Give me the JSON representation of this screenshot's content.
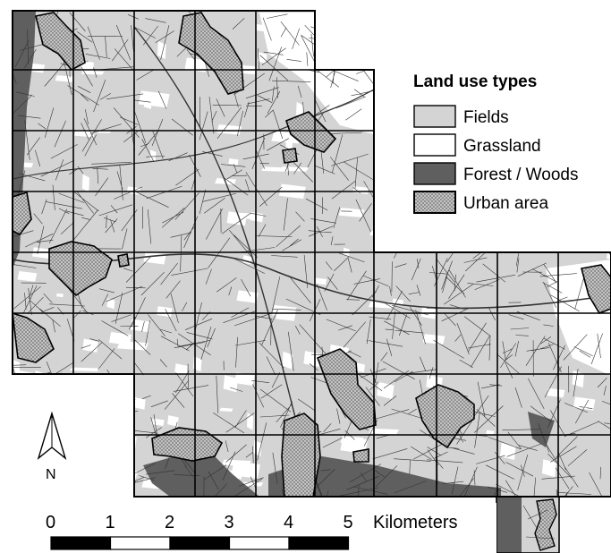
{
  "legend": {
    "title": "Land use types",
    "items": [
      {
        "label": "Fields",
        "color": "#d4d4d4",
        "pattern": "solid"
      },
      {
        "label": "Grassland",
        "color": "#ffffff",
        "pattern": "solid"
      },
      {
        "label": "Forest / Woods",
        "color": "#5f5f5f",
        "pattern": "solid"
      },
      {
        "label": "Urban area",
        "color": "#9a9a9a",
        "pattern": "dotted"
      }
    ]
  },
  "north_arrow": {
    "label": "N",
    "icon": "north-arrow-icon"
  },
  "scale_bar": {
    "ticks": [
      "0",
      "1",
      "2",
      "3",
      "4",
      "5"
    ],
    "unit": "Kilometers"
  }
}
